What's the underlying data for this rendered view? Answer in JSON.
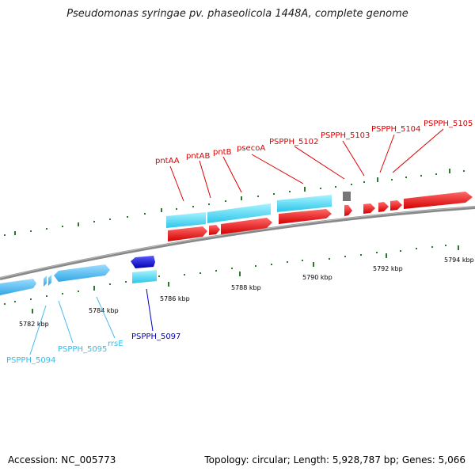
{
  "title": "Pseudomonas syringae pv. phaseolicola 1448A, complete genome",
  "footer": {
    "accession": "Accession: NC_005773",
    "summary": "Topology: circular; Length: 5,928,787 bp; Genes: 5,066"
  },
  "colors": {
    "forward_gene": "#ee1111",
    "reverse_gene": "#33ccee",
    "rna_gene": "#22eedd",
    "highlight_gene": "#1111cc",
    "unknown_gene": "#777777",
    "tick": "#2a7a2a",
    "backbone": "#888888"
  },
  "tick_labels": [
    "5782 kbp",
    "5784 kbp",
    "5786 kbp",
    "5788 kbp",
    "5790 kbp",
    "5792 kbp",
    "5794 kbp"
  ],
  "gene_labels": {
    "pntAA": "pntAA",
    "pntAB": "pntAB",
    "pntB": "pntB",
    "psecoA": "psecoA",
    "PSPPH_5102": "PSPPH_5102",
    "PSPPH_5103": "PSPPH_5103",
    "PSPPH_5104": "PSPPH_5104",
    "PSPPH_5105": "PSPPH_5105",
    "PSPPH_5094": "PSPPH_5094",
    "PSPPH_5095": "PSPPH_5095",
    "rrsE": "rrsE",
    "PSPPH_5097": "PSPPH_5097"
  }
}
